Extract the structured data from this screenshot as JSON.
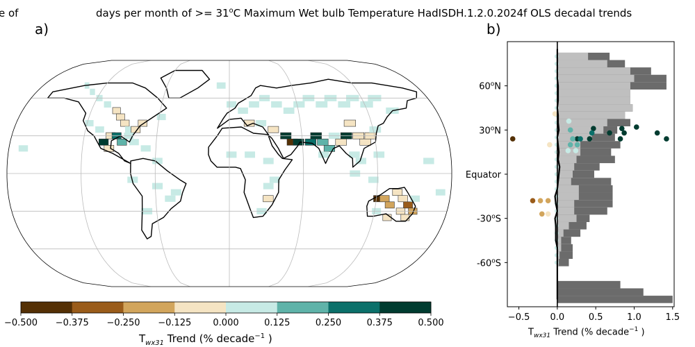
{
  "figure": {
    "title_left": "e of",
    "title_main": "days per month of >= 31",
    "title_main_sup": "o",
    "title_main_rest": "C Maximum Wet bulb Temperature HadISDH.1.2.0.2024f OLS decadal trends",
    "panel_a_label": "a)",
    "panel_b_label": "b)"
  },
  "colors": {
    "bins": [
      "#543005",
      "#9a5c1a",
      "#d2a55c",
      "#f5e4c3",
      "#c7eae5",
      "#5fb3a9",
      "#0b706a",
      "#003c30"
    ],
    "map_outline": "#000000",
    "grid": "#bbbbbb",
    "profile_dark_gray": "#6b6b6b",
    "profile_light_gray": "#bfbfbf"
  },
  "chart_data": [
    {
      "type": "heatmap",
      "panel": "a)",
      "description_basis": "gridded trend boxes over world map (Robinson projection); bin index 0-7 per colorbar",
      "cells": [
        {
          "lon": -140,
          "lat": 70,
          "bin": 4
        },
        {
          "lon": -130,
          "lat": 65,
          "bin": 4
        },
        {
          "lon": -120,
          "lat": 60,
          "bin": 4
        },
        {
          "lon": -110,
          "lat": 55,
          "bin": 4
        },
        {
          "lon": -100,
          "lat": 50,
          "bin": 3
        },
        {
          "lon": -95,
          "lat": 45,
          "bin": 3
        },
        {
          "lon": -90,
          "lat": 40,
          "bin": 3
        },
        {
          "lon": -85,
          "lat": 35,
          "bin": 4
        },
        {
          "lon": -80,
          "lat": 35,
          "bin": 3
        },
        {
          "lon": -100,
          "lat": 30,
          "bin": 3
        },
        {
          "lon": -95,
          "lat": 30,
          "bin": 6
        },
        {
          "lon": -90,
          "lat": 25,
          "bin": 5
        },
        {
          "lon": -85,
          "lat": 30,
          "bin": 4
        },
        {
          "lon": -105,
          "lat": 25,
          "bin": 7
        },
        {
          "lon": -80,
          "lat": 25,
          "bin": 4
        },
        {
          "lon": -75,
          "lat": 40,
          "bin": 3
        },
        {
          "lon": -110,
          "lat": 35,
          "bin": 4
        },
        {
          "lon": -120,
          "lat": 40,
          "bin": 4
        },
        {
          "lon": -60,
          "lat": 45,
          "bin": 4
        },
        {
          "lon": -100,
          "lat": 20,
          "bin": 3
        },
        {
          "lon": -70,
          "lat": 20,
          "bin": 4
        },
        {
          "lon": -60,
          "lat": 10,
          "bin": 4
        },
        {
          "lon": -60,
          "lat": -10,
          "bin": 4
        },
        {
          "lon": -50,
          "lat": -20,
          "bin": 4
        },
        {
          "lon": -70,
          "lat": -30,
          "bin": 4
        },
        {
          "lon": -45,
          "lat": -15,
          "bin": 4
        },
        {
          "lon": -80,
          "lat": -5,
          "bin": 4
        },
        {
          "lon": -10,
          "lat": 70,
          "bin": 4
        },
        {
          "lon": 0,
          "lat": 55,
          "bin": 4
        },
        {
          "lon": 10,
          "lat": 50,
          "bin": 4
        },
        {
          "lon": 20,
          "lat": 55,
          "bin": 4
        },
        {
          "lon": 30,
          "lat": 60,
          "bin": 4
        },
        {
          "lon": 40,
          "lat": 55,
          "bin": 4
        },
        {
          "lon": 50,
          "lat": 50,
          "bin": 4
        },
        {
          "lon": 60,
          "lat": 55,
          "bin": 4
        },
        {
          "lon": 70,
          "lat": 60,
          "bin": 4
        },
        {
          "lon": 80,
          "lat": 55,
          "bin": 4
        },
        {
          "lon": 90,
          "lat": 60,
          "bin": 4
        },
        {
          "lon": 100,
          "lat": 55,
          "bin": 4
        },
        {
          "lon": 110,
          "lat": 60,
          "bin": 4
        },
        {
          "lon": 120,
          "lat": 55,
          "bin": 4
        },
        {
          "lon": 130,
          "lat": 60,
          "bin": 4
        },
        {
          "lon": 140,
          "lat": 50,
          "bin": 4
        },
        {
          "lon": 15,
          "lat": 40,
          "bin": 3
        },
        {
          "lon": 25,
          "lat": 40,
          "bin": 4
        },
        {
          "lon": 35,
          "lat": 35,
          "bin": 3
        },
        {
          "lon": 45,
          "lat": 30,
          "bin": 7
        },
        {
          "lon": 50,
          "lat": 25,
          "bin": 0
        },
        {
          "lon": 55,
          "lat": 25,
          "bin": 7
        },
        {
          "lon": 65,
          "lat": 25,
          "bin": 6
        },
        {
          "lon": 70,
          "lat": 30,
          "bin": 7
        },
        {
          "lon": 75,
          "lat": 25,
          "bin": 5
        },
        {
          "lon": 80,
          "lat": 20,
          "bin": 5
        },
        {
          "lon": 75,
          "lat": 15,
          "bin": 4
        },
        {
          "lon": 85,
          "lat": 30,
          "bin": 4
        },
        {
          "lon": 90,
          "lat": 25,
          "bin": 3
        },
        {
          "lon": 95,
          "lat": 30,
          "bin": 7
        },
        {
          "lon": 105,
          "lat": 30,
          "bin": 3
        },
        {
          "lon": 110,
          "lat": 25,
          "bin": 3
        },
        {
          "lon": 115,
          "lat": 30,
          "bin": 3
        },
        {
          "lon": 100,
          "lat": 40,
          "bin": 3
        },
        {
          "lon": 120,
          "lat": 35,
          "bin": 4
        },
        {
          "lon": 100,
          "lat": 15,
          "bin": 4
        },
        {
          "lon": 105,
          "lat": 10,
          "bin": 4
        },
        {
          "lon": 120,
          "lat": 15,
          "bin": 4
        },
        {
          "lon": 100,
          "lat": 0,
          "bin": 4
        },
        {
          "lon": 115,
          "lat": -5,
          "bin": 4
        },
        {
          "lon": 30,
          "lat": 10,
          "bin": 4
        },
        {
          "lon": 15,
          "lat": 15,
          "bin": 4
        },
        {
          "lon": 0,
          "lat": 15,
          "bin": 4
        },
        {
          "lon": 35,
          "lat": -5,
          "bin": 4
        },
        {
          "lon": 30,
          "lat": -20,
          "bin": 3
        },
        {
          "lon": 25,
          "lat": -30,
          "bin": 4
        },
        {
          "lon": 30,
          "lat": -10,
          "bin": 4
        },
        {
          "lon": 120,
          "lat": -20,
          "bin": 0
        },
        {
          "lon": 125,
          "lat": -20,
          "bin": 2
        },
        {
          "lon": 130,
          "lat": -25,
          "bin": 2
        },
        {
          "lon": 140,
          "lat": -20,
          "bin": 3
        },
        {
          "lon": 145,
          "lat": -25,
          "bin": 1
        },
        {
          "lon": 150,
          "lat": -30,
          "bin": 2
        },
        {
          "lon": 140,
          "lat": -30,
          "bin": 3
        },
        {
          "lon": 135,
          "lat": -15,
          "bin": 3
        },
        {
          "lon": 145,
          "lat": -35,
          "bin": 3
        },
        {
          "lon": 120,
          "lat": -30,
          "bin": 4
        },
        {
          "lon": 130,
          "lat": -35,
          "bin": 3
        },
        {
          "lon": 150,
          "lat": -20,
          "bin": 4
        },
        {
          "lon": -170,
          "lat": 20,
          "bin": 4
        },
        {
          "lon": 170,
          "lat": -15,
          "bin": 4
        },
        {
          "lon": 160,
          "lat": 10,
          "bin": 4
        }
      ]
    },
    {
      "type": "bar",
      "panel": "b)",
      "colorbar": {
        "label": "T",
        "label_sub": "wx31",
        "label_rest": " Trend (% decade",
        "label_sup": "−1",
        "label_end": " )",
        "ticks": [
          "−0.500",
          "−0.375",
          "−0.250",
          "−0.125",
          "0.000",
          "0.125",
          "0.250",
          "0.375",
          "0.500"
        ],
        "bounds": [
          -0.5,
          0.5
        ]
      },
      "profile": {
        "xlabel": "T",
        "xlabel_sub": "wx31",
        "xlabel_rest": " Trend (% decade",
        "xlabel_sup": "−1",
        "xlabel_end": " )",
        "xlim": [
          -0.65,
          1.52
        ],
        "xticks": [
          {
            "value": -0.5,
            "label": "−0.5"
          },
          {
            "value": 0.0,
            "label": "0.0"
          },
          {
            "value": 0.5,
            "label": "0.5"
          },
          {
            "value": 1.0,
            "label": "1.0"
          },
          {
            "value": 1.5,
            "label": "1.5"
          }
        ],
        "ylim": [
          -90,
          90
        ],
        "yticks": [
          {
            "value": 60,
            "label": "60",
            "sup": "o",
            "end": "N"
          },
          {
            "value": 30,
            "label": "30",
            "sup": "o",
            "end": "N"
          },
          {
            "value": 0,
            "label": "Equator",
            "sup": "",
            "end": ""
          },
          {
            "value": -30,
            "label": "-30",
            "sup": "o",
            "end": "S"
          },
          {
            "value": -60,
            "label": "-60",
            "sup": "o",
            "end": "S"
          }
        ],
        "lat_bands": [
          85,
          80,
          75,
          70,
          65,
          60,
          55,
          50,
          45,
          40,
          35,
          30,
          25,
          20,
          15,
          10,
          5,
          0,
          -5,
          -10,
          -15,
          -20,
          -25,
          -30,
          -35,
          -40,
          -45,
          -50,
          -55,
          -60,
          -65,
          -70,
          -75,
          -80,
          -85
        ],
        "land_fraction_dark": [
          0.0,
          0.68,
          0.88,
          1.22,
          1.42,
          1.42,
          0.95,
          0.95,
          0.98,
          0.88,
          0.95,
          0.78,
          0.75,
          0.82,
          0.7,
          0.75,
          0.55,
          0.48,
          0.7,
          0.72,
          0.72,
          0.72,
          0.65,
          0.42,
          0.38,
          0.3,
          0.18,
          0.2,
          0.2,
          0.15,
          0.0,
          0.0,
          0.82,
          1.12,
          1.5
        ],
        "obs_fraction_light": [
          0.0,
          0.4,
          0.65,
          0.95,
          1.0,
          0.95,
          0.95,
          0.95,
          0.98,
          0.88,
          0.65,
          0.6,
          0.45,
          0.3,
          0.3,
          0.25,
          0.22,
          0.2,
          0.18,
          0.28,
          0.28,
          0.22,
          0.22,
          0.25,
          0.15,
          0.08,
          0.05,
          0.05,
          0.03,
          0.02,
          0.0,
          0.0,
          0.0,
          0.0,
          0.0
        ],
        "zonal_mean_trend": [
          0.0,
          0.0,
          0.0,
          0.0,
          0.0,
          0.01,
          0.01,
          0.01,
          0.0,
          0.01,
          0.01,
          0.02,
          0.0,
          0.01,
          0.02,
          0.01,
          0.03,
          0.02,
          0.01,
          0.0,
          -0.03,
          -0.02,
          0.0,
          -0.03,
          -0.02,
          -0.02,
          -0.02,
          0.0,
          0.0,
          0.0,
          0.0,
          0.0,
          0.0,
          0.0,
          0.0
        ],
        "points": [
          {
            "lat": 24,
            "trend": -0.58,
            "bin": 0
          },
          {
            "lat": 31,
            "trend": 0.47,
            "bin": 7
          },
          {
            "lat": 31,
            "trend": 0.84,
            "bin": 7
          },
          {
            "lat": 32,
            "trend": 1.03,
            "bin": 7
          },
          {
            "lat": 28,
            "trend": 0.68,
            "bin": 7
          },
          {
            "lat": 28,
            "trend": 0.87,
            "bin": 7
          },
          {
            "lat": 28,
            "trend": 1.3,
            "bin": 7
          },
          {
            "lat": 24,
            "trend": 0.26,
            "bin": 7
          },
          {
            "lat": 24,
            "trend": 0.42,
            "bin": 7
          },
          {
            "lat": 24,
            "trend": 0.82,
            "bin": 7
          },
          {
            "lat": 24,
            "trend": 1.42,
            "bin": 7
          },
          {
            "lat": 28,
            "trend": 0.45,
            "bin": 6
          },
          {
            "lat": 24,
            "trend": 0.3,
            "bin": 6
          },
          {
            "lat": 20,
            "trend": 0.26,
            "bin": 5
          },
          {
            "lat": 20,
            "trend": 0.17,
            "bin": 5
          },
          {
            "lat": 24,
            "trend": 0.2,
            "bin": 5
          },
          {
            "lat": 30,
            "trend": 0.17,
            "bin": 5
          },
          {
            "lat": 16,
            "trend": 0.24,
            "bin": 4
          },
          {
            "lat": 16,
            "trend": 0.14,
            "bin": 4
          },
          {
            "lat": 36,
            "trend": 0.15,
            "bin": 4
          },
          {
            "lat": 20,
            "trend": -0.1,
            "bin": 3
          },
          {
            "lat": 41,
            "trend": -0.03,
            "bin": 3
          },
          {
            "lat": -18,
            "trend": -0.32,
            "bin": 1
          },
          {
            "lat": -18,
            "trend": -0.22,
            "bin": 2
          },
          {
            "lat": -18,
            "trend": -0.12,
            "bin": 2
          },
          {
            "lat": -27,
            "trend": -0.2,
            "bin": 2
          },
          {
            "lat": -27,
            "trend": -0.12,
            "bin": 3
          }
        ]
      }
    }
  ]
}
